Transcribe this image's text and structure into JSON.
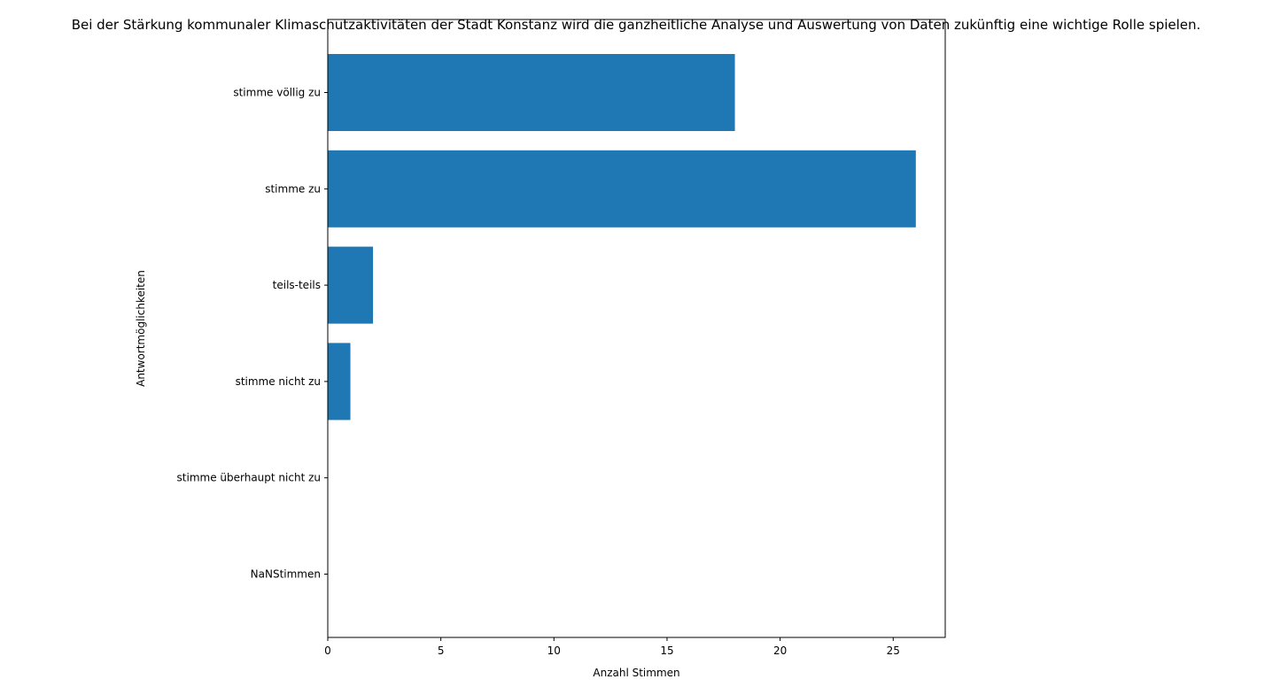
{
  "chart_data": {
    "type": "bar",
    "orientation": "horizontal",
    "title": "Bei der Stärkung kommunaler Klimaschutzaktivitäten der Stadt Konstanz wird die ganzheitliche Analyse und Auswertung von Daten zukünftig eine wichtige Rolle spielen.",
    "xlabel": "Anzahl Stimmen",
    "ylabel": "Antwortmöglichkeiten",
    "categories": [
      "stimme völlig zu",
      "stimme zu",
      "teils-teils",
      "stimme nicht zu",
      "stimme überhaupt nicht zu",
      "NaNStimmen"
    ],
    "values": [
      18,
      26,
      2,
      1,
      0,
      0
    ],
    "xlim": [
      0,
      27.3
    ],
    "xticks": [
      "0",
      "5",
      "10",
      "15",
      "20",
      "25"
    ],
    "grid": false,
    "legend": "none",
    "bar_color": "#1f77b4"
  }
}
